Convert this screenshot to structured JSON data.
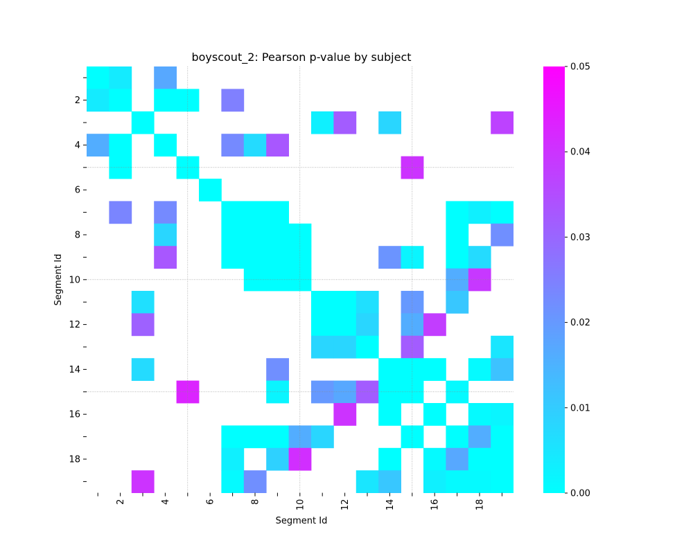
{
  "chart_data": {
    "type": "heatmap",
    "title": "boyscout_2: Pearson p-value by subject",
    "xlabel": "Segment Id",
    "ylabel": "Segment Id",
    "n": 19,
    "x_ticks": [
      "",
      "2",
      "",
      "4",
      "",
      "6",
      "",
      "8",
      "",
      "10",
      "",
      "12",
      "",
      "14",
      "",
      "16",
      "",
      "18",
      ""
    ],
    "y_ticks": [
      "",
      "2",
      "",
      "4",
      "",
      "6",
      "",
      "8",
      "",
      "10",
      "",
      "12",
      "",
      "14",
      "",
      "16",
      "",
      "18",
      ""
    ],
    "colorbar": {
      "min": 0.0,
      "max": 0.05,
      "ticks": [
        "0.00",
        "0.01",
        "0.02",
        "0.03",
        "0.04",
        "0.05"
      ],
      "colormap": "cool",
      "color_low": "#00ffff",
      "color_high": "#ff00ff"
    },
    "grid": "dotted lines every 5 segments",
    "cells": [
      [
        1,
        1,
        0.0
      ],
      [
        1,
        2,
        0.004
      ],
      [
        1,
        4,
        0.017
      ],
      [
        2,
        1,
        0.004
      ],
      [
        2,
        2,
        0.0
      ],
      [
        2,
        4,
        0.0
      ],
      [
        2,
        5,
        0.0
      ],
      [
        2,
        7,
        0.025
      ],
      [
        3,
        3,
        0.0
      ],
      [
        3,
        11,
        0.003
      ],
      [
        3,
        12,
        0.032
      ],
      [
        3,
        14,
        0.008
      ],
      [
        3,
        19,
        0.037
      ],
      [
        4,
        1,
        0.016
      ],
      [
        4,
        2,
        0.0
      ],
      [
        4,
        4,
        0.0
      ],
      [
        4,
        7,
        0.023
      ],
      [
        4,
        8,
        0.007
      ],
      [
        4,
        9,
        0.033
      ],
      [
        5,
        2,
        0.0
      ],
      [
        5,
        5,
        0.0
      ],
      [
        5,
        15,
        0.04
      ],
      [
        6,
        6,
        0.0
      ],
      [
        7,
        2,
        0.024
      ],
      [
        7,
        4,
        0.023
      ],
      [
        7,
        7,
        0.0
      ],
      [
        7,
        8,
        0.0
      ],
      [
        7,
        9,
        0.0
      ],
      [
        7,
        17,
        0.0
      ],
      [
        7,
        18,
        0.003
      ],
      [
        7,
        19,
        0.0
      ],
      [
        8,
        4,
        0.008
      ],
      [
        8,
        7,
        0.0
      ],
      [
        8,
        8,
        0.0
      ],
      [
        8,
        9,
        0.0
      ],
      [
        8,
        10,
        0.0
      ],
      [
        8,
        17,
        0.0
      ],
      [
        8,
        19,
        0.022
      ],
      [
        9,
        4,
        0.033
      ],
      [
        9,
        7,
        0.0
      ],
      [
        9,
        8,
        0.0
      ],
      [
        9,
        9,
        0.0
      ],
      [
        9,
        10,
        0.0
      ],
      [
        9,
        14,
        0.021
      ],
      [
        9,
        15,
        0.002
      ],
      [
        9,
        17,
        0.0
      ],
      [
        9,
        18,
        0.007
      ],
      [
        10,
        8,
        0.0
      ],
      [
        10,
        9,
        0.0
      ],
      [
        10,
        10,
        0.0
      ],
      [
        10,
        17,
        0.016
      ],
      [
        10,
        18,
        0.039
      ],
      [
        11,
        3,
        0.006
      ],
      [
        11,
        11,
        0.0
      ],
      [
        11,
        12,
        0.0
      ],
      [
        11,
        13,
        0.006
      ],
      [
        11,
        15,
        0.02
      ],
      [
        11,
        17,
        0.011
      ],
      [
        12,
        3,
        0.031
      ],
      [
        12,
        11,
        0.0
      ],
      [
        12,
        12,
        0.0
      ],
      [
        12,
        13,
        0.008
      ],
      [
        12,
        15,
        0.016
      ],
      [
        12,
        16,
        0.038
      ],
      [
        13,
        11,
        0.008
      ],
      [
        13,
        12,
        0.008
      ],
      [
        13,
        13,
        0.0
      ],
      [
        13,
        15,
        0.032
      ],
      [
        13,
        19,
        0.005
      ],
      [
        14,
        3,
        0.007
      ],
      [
        14,
        9,
        0.022
      ],
      [
        14,
        14,
        0.0
      ],
      [
        14,
        15,
        0.0
      ],
      [
        14,
        16,
        0.0
      ],
      [
        14,
        18,
        0.001
      ],
      [
        14,
        19,
        0.012
      ],
      [
        15,
        5,
        0.043
      ],
      [
        15,
        9,
        0.002
      ],
      [
        15,
        11,
        0.02
      ],
      [
        15,
        12,
        0.017
      ],
      [
        15,
        13,
        0.032
      ],
      [
        15,
        14,
        0.0
      ],
      [
        15,
        15,
        0.0
      ],
      [
        15,
        17,
        0.001
      ],
      [
        16,
        12,
        0.04
      ],
      [
        16,
        14,
        0.0
      ],
      [
        16,
        16,
        0.0
      ],
      [
        16,
        18,
        0.001
      ],
      [
        16,
        19,
        0.002
      ],
      [
        17,
        7,
        0.0
      ],
      [
        17,
        8,
        0.0
      ],
      [
        17,
        9,
        0.0
      ],
      [
        17,
        10,
        0.016
      ],
      [
        17,
        11,
        0.008
      ],
      [
        17,
        15,
        0.0
      ],
      [
        17,
        17,
        0.0
      ],
      [
        17,
        18,
        0.016
      ],
      [
        17,
        19,
        0.0
      ],
      [
        18,
        7,
        0.003
      ],
      [
        18,
        9,
        0.009
      ],
      [
        18,
        10,
        0.041
      ],
      [
        18,
        14,
        0.0
      ],
      [
        18,
        16,
        0.001
      ],
      [
        18,
        17,
        0.017
      ],
      [
        18,
        18,
        0.0
      ],
      [
        18,
        19,
        0.0
      ],
      [
        19,
        3,
        0.04
      ],
      [
        19,
        7,
        0.001
      ],
      [
        19,
        8,
        0.022
      ],
      [
        19,
        13,
        0.005
      ],
      [
        19,
        14,
        0.011
      ],
      [
        19,
        16,
        0.003
      ],
      [
        19,
        17,
        0.001
      ],
      [
        19,
        18,
        0.001
      ],
      [
        19,
        19,
        0.0
      ]
    ]
  }
}
